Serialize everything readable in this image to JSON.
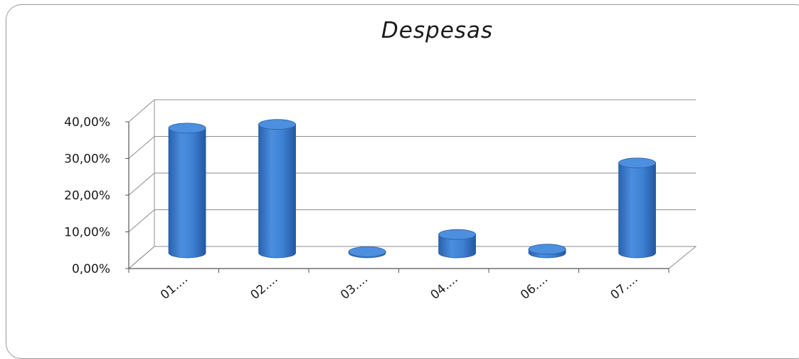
{
  "chart_data": {
    "type": "bar",
    "title": "Despesas",
    "xlabel": "",
    "ylabel": "",
    "categories": [
      "01....",
      "02....",
      "03....",
      "04....",
      "06....",
      "07...."
    ],
    "values": [
      34.0,
      35.0,
      0.3,
      5.0,
      1.0,
      24.5
    ],
    "ylim": [
      0,
      40
    ],
    "yticks": [
      "0,00%",
      "10,00%",
      "20,00%",
      "30,00%",
      "40,00%"
    ],
    "grid": true,
    "legend": "none",
    "bar_color": "#3d7fcf"
  }
}
